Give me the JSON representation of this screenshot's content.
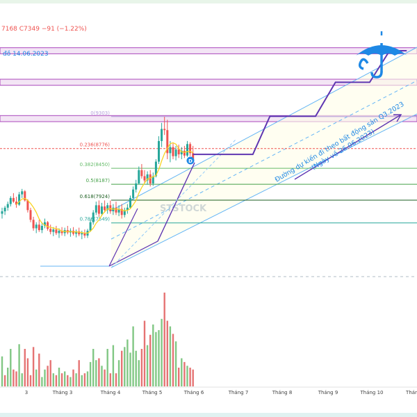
{
  "header": {
    "price_text": "7168  C7349  −91 (−1.22%)",
    "date_text": "đồ 14.06.2023"
  },
  "annotation": {
    "line1": "Đường dự kiến đi theo bất động sản Q3.2023",
    "line2": "(Ngày về 26.06.2023)"
  },
  "watermark": "STSTOCK",
  "marker_label": "D",
  "fib_levels": [
    {
      "label": "0(9303)",
      "value": 9303,
      "color": "#b39ddb"
    },
    {
      "label": "0.236(8776)",
      "value": 8776,
      "color": "#ef5350"
    },
    {
      "label": "0.382(8450)",
      "value": 8450,
      "color": "#66bb6a"
    },
    {
      "label": "0.5(8187)",
      "value": 8187,
      "color": "#43a047"
    },
    {
      "label": "0.618(7924)",
      "value": 7924,
      "color": "#1b5e20"
    },
    {
      "label": "0.786(7549)",
      "value": 7549,
      "color": "#26a69a"
    }
  ],
  "colors": {
    "up": "#26a69a",
    "down": "#ef5350",
    "vol_up": "#81c784",
    "vol_down": "#e57373",
    "ma": "#f9d423",
    "channel": "#64b5f6",
    "projection": "#5e35b1",
    "zone_border": "#ab47bc",
    "zone_fill": "#f3e5f5",
    "umbrella": "#1e88e5"
  },
  "icons": {
    "umbrella": "umbrella-icon"
  },
  "chart_data": {
    "type": "candlestick",
    "x_tick_labels": [
      "3",
      "Tháng 3",
      "Tháng 4",
      "Tháng 5",
      "Tháng 6",
      "Tháng 7",
      "Tháng 8",
      "Tháng 9",
      "Tháng 10",
      "Tháng"
    ],
    "y_range": [
      6800,
      10700
    ],
    "resistance_zones": [
      {
        "low": 10340,
        "high": 10440
      },
      {
        "low": 9820,
        "high": 9920
      },
      {
        "low": 9220,
        "high": 9320
      }
    ],
    "candles": [
      [
        7700,
        7800,
        7620,
        7740
      ],
      [
        7740,
        7830,
        7680,
        7800
      ],
      [
        7800,
        7900,
        7750,
        7860
      ],
      [
        7860,
        7990,
        7820,
        7960
      ],
      [
        7960,
        8040,
        7880,
        7900
      ],
      [
        7900,
        7980,
        7800,
        7850
      ],
      [
        7850,
        8060,
        7830,
        8020
      ],
      [
        8020,
        8110,
        7960,
        8070
      ],
      [
        8070,
        8090,
        7900,
        7920
      ],
      [
        7920,
        7940,
        7720,
        7760
      ],
      [
        7760,
        7800,
        7560,
        7600
      ],
      [
        7600,
        7650,
        7420,
        7460
      ],
      [
        7460,
        7560,
        7380,
        7520
      ],
      [
        7520,
        7600,
        7400,
        7430
      ],
      [
        7430,
        7560,
        7380,
        7500
      ],
      [
        7500,
        7620,
        7460,
        7560
      ],
      [
        7560,
        7580,
        7420,
        7450
      ],
      [
        7450,
        7520,
        7360,
        7400
      ],
      [
        7400,
        7480,
        7330,
        7440
      ],
      [
        7440,
        7500,
        7350,
        7380
      ],
      [
        7380,
        7460,
        7300,
        7420
      ],
      [
        7420,
        7480,
        7340,
        7380
      ],
      [
        7380,
        7470,
        7330,
        7430
      ],
      [
        7430,
        7500,
        7360,
        7390
      ],
      [
        7390,
        7460,
        7320,
        7420
      ],
      [
        7420,
        7480,
        7340,
        7370
      ],
      [
        7370,
        7440,
        7310,
        7410
      ],
      [
        7410,
        7470,
        7330,
        7360
      ],
      [
        7360,
        7420,
        7280,
        7380
      ],
      [
        7380,
        7440,
        7300,
        7340
      ],
      [
        7340,
        7450,
        7300,
        7420
      ],
      [
        7420,
        7600,
        7400,
        7560
      ],
      [
        7560,
        7760,
        7520,
        7720
      ],
      [
        7720,
        7900,
        7680,
        7840
      ],
      [
        7840,
        7920,
        7650,
        7700
      ],
      [
        7700,
        7880,
        7660,
        7820
      ],
      [
        7820,
        7920,
        7720,
        7760
      ],
      [
        7760,
        7880,
        7700,
        7840
      ],
      [
        7840,
        7920,
        7700,
        7740
      ],
      [
        7740,
        7860,
        7680,
        7800
      ],
      [
        7800,
        7900,
        7680,
        7720
      ],
      [
        7720,
        7840,
        7660,
        7780
      ],
      [
        7780,
        7860,
        7620,
        7680
      ],
      [
        7680,
        7800,
        7640,
        7760
      ],
      [
        7760,
        7860,
        7700,
        7800
      ],
      [
        7800,
        8000,
        7780,
        7960
      ],
      [
        7960,
        8150,
        7920,
        8100
      ],
      [
        8100,
        8260,
        8050,
        8200
      ],
      [
        8200,
        8480,
        8180,
        8420
      ],
      [
        8420,
        8520,
        8280,
        8320
      ],
      [
        8320,
        8420,
        8200,
        8250
      ],
      [
        8250,
        8400,
        8180,
        8350
      ],
      [
        8350,
        8420,
        8150,
        8200
      ],
      [
        8200,
        8380,
        8160,
        8320
      ],
      [
        8320,
        8600,
        8300,
        8560
      ],
      [
        8560,
        8980,
        8520,
        8900
      ],
      [
        8900,
        9200,
        8800,
        9100
      ],
      [
        9100,
        9300,
        9000,
        9080
      ],
      [
        9080,
        9250,
        8600,
        8700
      ],
      [
        8700,
        8900,
        8550,
        8800
      ],
      [
        8800,
        8860,
        8600,
        8650
      ],
      [
        8650,
        8820,
        8580,
        8760
      ],
      [
        8760,
        8840,
        8620,
        8680
      ],
      [
        8680,
        8800,
        8600,
        8740
      ],
      [
        8740,
        8820,
        8620,
        8660
      ],
      [
        8660,
        8900,
        8640,
        8850
      ],
      [
        8850,
        8880,
        8650,
        8700
      ],
      [
        8700,
        8820,
        8560,
        8600
      ]
    ],
    "volumes": [
      32,
      12,
      20,
      40,
      18,
      16,
      45,
      14,
      40,
      30,
      12,
      42,
      18,
      35,
      10,
      18,
      22,
      28,
      14,
      12,
      20,
      14,
      16,
      12,
      10,
      18,
      14,
      28,
      12,
      14,
      16,
      26,
      40,
      28,
      30,
      22,
      18,
      40,
      14,
      44,
      14,
      28,
      38,
      42,
      50,
      36,
      64,
      38,
      28,
      40,
      70,
      44,
      55,
      66,
      58,
      60,
      72,
      100,
      70,
      64,
      56,
      48,
      20,
      30,
      26,
      22,
      20,
      18
    ],
    "volume_up": [
      true,
      false,
      true,
      true,
      false,
      false,
      true,
      true,
      false,
      false,
      false,
      false,
      true,
      false,
      true,
      true,
      false,
      false,
      true,
      false,
      true,
      false,
      true,
      false,
      true,
      false,
      true,
      false,
      true,
      false,
      true,
      true,
      true,
      true,
      false,
      true,
      false,
      true,
      false,
      true,
      false,
      true,
      false,
      true,
      true,
      true,
      true,
      true,
      true,
      false,
      false,
      true,
      false,
      true,
      true,
      true,
      true,
      false,
      false,
      true,
      false,
      true,
      false,
      true,
      false,
      true,
      false,
      false
    ],
    "projection_path": [
      {
        "bar": 67,
        "price": 8680
      },
      {
        "bar": 88,
        "price": 8680
      },
      {
        "bar": 94,
        "price": 9310
      },
      {
        "bar": 110,
        "price": 9310
      },
      {
        "bar": 117,
        "price": 9870
      },
      {
        "bar": 129,
        "price": 9870
      },
      {
        "bar": 136,
        "price": 10390
      },
      {
        "bar": 142,
        "price": 10390
      }
    ]
  }
}
